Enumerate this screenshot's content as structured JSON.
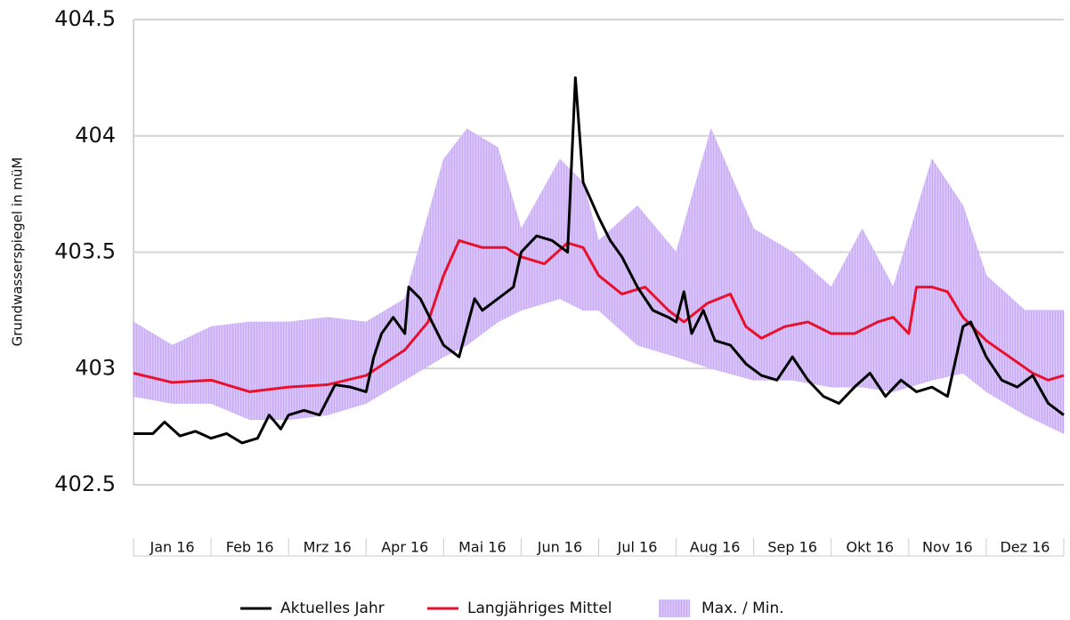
{
  "chart_data": {
    "type": "line",
    "y_label": "Grundwasserspiegel in müM",
    "xlim": [
      0,
      12
    ],
    "ylim": [
      402.5,
      404.5
    ],
    "yticks": [
      402.5,
      403,
      403.5,
      404,
      404.5
    ],
    "xticks": [
      {
        "value": 0.5,
        "label": "Jan 16"
      },
      {
        "value": 1.5,
        "label": "Feb 16"
      },
      {
        "value": 2.5,
        "label": "Mrz 16"
      },
      {
        "value": 3.5,
        "label": "Apr 16"
      },
      {
        "value": 4.5,
        "label": "Mai 16"
      },
      {
        "value": 5.5,
        "label": "Jun 16"
      },
      {
        "value": 6.5,
        "label": "Jul 16"
      },
      {
        "value": 7.5,
        "label": "Aug 16"
      },
      {
        "value": 8.5,
        "label": "Sep 16"
      },
      {
        "value": 9.5,
        "label": "Okt 16"
      },
      {
        "value": 10.5,
        "label": "Nov 16"
      },
      {
        "value": 11.5,
        "label": "Dez 16"
      }
    ],
    "grid": true,
    "legend": "bottom",
    "band": {
      "name": "Max. / Min.",
      "color": "#c9a8f5",
      "x": [
        0,
        0.5,
        1,
        1.5,
        2,
        2.5,
        3,
        3.5,
        4,
        4.3,
        4.7,
        5,
        5.5,
        5.8,
        6,
        6.5,
        7,
        7.45,
        8,
        8.5,
        9,
        9.4,
        9.8,
        10.3,
        10.7,
        11,
        11.5,
        12
      ],
      "max": [
        403.2,
        403.1,
        403.18,
        403.2,
        403.2,
        403.22,
        403.2,
        403.3,
        403.9,
        404.03,
        403.95,
        403.6,
        403.9,
        403.8,
        403.55,
        403.7,
        403.5,
        404.03,
        403.6,
        403.5,
        403.35,
        403.6,
        403.35,
        403.9,
        403.7,
        403.4,
        403.25,
        403.25
      ],
      "min": [
        402.88,
        402.85,
        402.85,
        402.78,
        402.78,
        402.8,
        402.85,
        402.95,
        403.05,
        403.1,
        403.2,
        403.25,
        403.3,
        403.25,
        403.25,
        403.1,
        403.05,
        403.0,
        402.95,
        402.95,
        402.92,
        402.92,
        402.9,
        402.95,
        402.98,
        402.9,
        402.8,
        402.72
      ]
    },
    "series": [
      {
        "name": "Aktuelles Jahr",
        "color": "#000000",
        "x": [
          0,
          0.25,
          0.4,
          0.6,
          0.8,
          1.0,
          1.2,
          1.4,
          1.6,
          1.75,
          1.9,
          2.0,
          2.2,
          2.4,
          2.6,
          2.8,
          3.0,
          3.1,
          3.2,
          3.35,
          3.5,
          3.55,
          3.7,
          3.85,
          4.0,
          4.2,
          4.4,
          4.5,
          4.7,
          4.9,
          5.0,
          5.2,
          5.4,
          5.6,
          5.7,
          5.8,
          6.0,
          6.15,
          6.3,
          6.5,
          6.7,
          6.9,
          7.0,
          7.1,
          7.2,
          7.35,
          7.5,
          7.7,
          7.9,
          8.1,
          8.3,
          8.5,
          8.7,
          8.9,
          9.1,
          9.3,
          9.5,
          9.7,
          9.9,
          10.1,
          10.3,
          10.5,
          10.7,
          10.8,
          11.0,
          11.2,
          11.4,
          11.6,
          11.8,
          12.0
        ],
        "values": [
          402.72,
          402.72,
          402.77,
          402.71,
          402.73,
          402.7,
          402.72,
          402.68,
          402.7,
          402.8,
          402.74,
          402.8,
          402.82,
          402.8,
          402.93,
          402.92,
          402.9,
          403.05,
          403.15,
          403.22,
          403.15,
          403.35,
          403.3,
          403.2,
          403.1,
          403.05,
          403.3,
          403.25,
          403.3,
          403.35,
          403.5,
          403.57,
          403.55,
          403.5,
          404.25,
          403.8,
          403.65,
          403.55,
          403.48,
          403.35,
          403.25,
          403.22,
          403.2,
          403.33,
          403.15,
          403.25,
          403.12,
          403.1,
          403.02,
          402.97,
          402.95,
          403.05,
          402.95,
          402.88,
          402.85,
          402.92,
          402.98,
          402.88,
          402.95,
          402.9,
          402.92,
          402.88,
          403.18,
          403.2,
          403.05,
          402.95,
          402.92,
          402.97,
          402.85,
          402.8
        ]
      },
      {
        "name": "Langjähriges Mittel",
        "color": "#e8112d",
        "x": [
          0,
          0.5,
          1,
          1.5,
          2,
          2.5,
          3,
          3.5,
          3.8,
          4.0,
          4.2,
          4.5,
          4.8,
          5.0,
          5.3,
          5.6,
          5.8,
          6.0,
          6.3,
          6.6,
          6.9,
          7.1,
          7.4,
          7.7,
          7.9,
          8.1,
          8.4,
          8.7,
          9.0,
          9.3,
          9.6,
          9.8,
          10.0,
          10.1,
          10.3,
          10.5,
          10.7,
          11.0,
          11.3,
          11.6,
          11.8,
          12.0
        ],
        "values": [
          402.98,
          402.94,
          402.95,
          402.9,
          402.92,
          402.93,
          402.97,
          403.08,
          403.2,
          403.4,
          403.55,
          403.52,
          403.52,
          403.48,
          403.45,
          403.54,
          403.52,
          403.4,
          403.32,
          403.35,
          403.25,
          403.2,
          403.28,
          403.32,
          403.18,
          403.13,
          403.18,
          403.2,
          403.15,
          403.15,
          403.2,
          403.22,
          403.15,
          403.35,
          403.35,
          403.33,
          403.22,
          403.12,
          403.05,
          402.98,
          402.95,
          402.97
        ]
      }
    ]
  }
}
